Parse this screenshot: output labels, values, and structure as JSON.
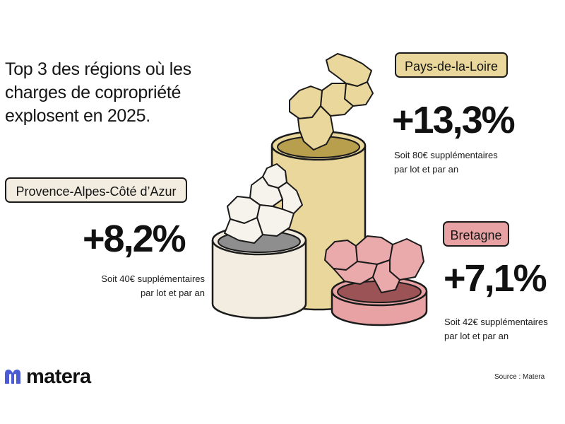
{
  "title": "Top 3 des régions où les charges de copropriété explosent en 2025.",
  "colors": {
    "pays_de_la_loire": "#ead79c",
    "provence": "#f2ede0",
    "bretagne": "#e8a2a4",
    "logo_accent": "#4a5bd4"
  },
  "regions": [
    {
      "name": "Pays-de-la-Loire",
      "change": "+13,3%",
      "line1": "Soit 80€ supplémentaires",
      "line2": "par lot et par an"
    },
    {
      "name": "Provence-Alpes-Côté d’Azur",
      "change": "+8,2%",
      "line1": "Soit 40€ supplémentaires",
      "line2": "par lot et par an"
    },
    {
      "name": "Bretagne",
      "change": "+7,1%",
      "line1": "Soit 42€ supplémentaires",
      "line2": "par lot et par an"
    }
  ],
  "brand": {
    "name": "matera",
    "icon": "matera-logo-icon"
  },
  "source": "Source : Matera"
}
